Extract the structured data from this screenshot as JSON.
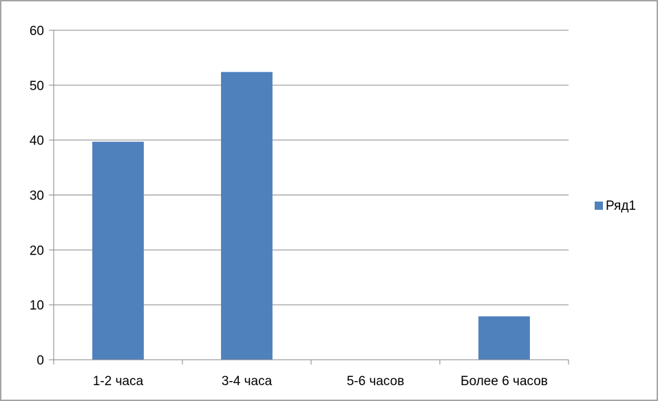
{
  "chart_data": {
    "type": "bar",
    "categories": [
      "1-2 часа",
      "3-4 часа",
      "5-6 часов",
      "Более 6 часов"
    ],
    "series": [
      {
        "name": "Ряд1",
        "values": [
          39.7,
          52.4,
          0,
          7.9
        ],
        "color": "#4F81BD"
      }
    ],
    "ylim": [
      0,
      60
    ],
    "yticks": [
      0,
      10,
      20,
      30,
      40,
      50,
      60
    ],
    "ytick_labels": [
      "0",
      "10",
      "20",
      "30",
      "40",
      "50",
      "60"
    ],
    "grid": true,
    "legend_position": "right",
    "title": "",
    "xlabel": "",
    "ylabel": ""
  },
  "colors": {
    "bar": "#4F81BD",
    "gridline": "#868686",
    "axis": "#868686",
    "frame": "#868686"
  }
}
